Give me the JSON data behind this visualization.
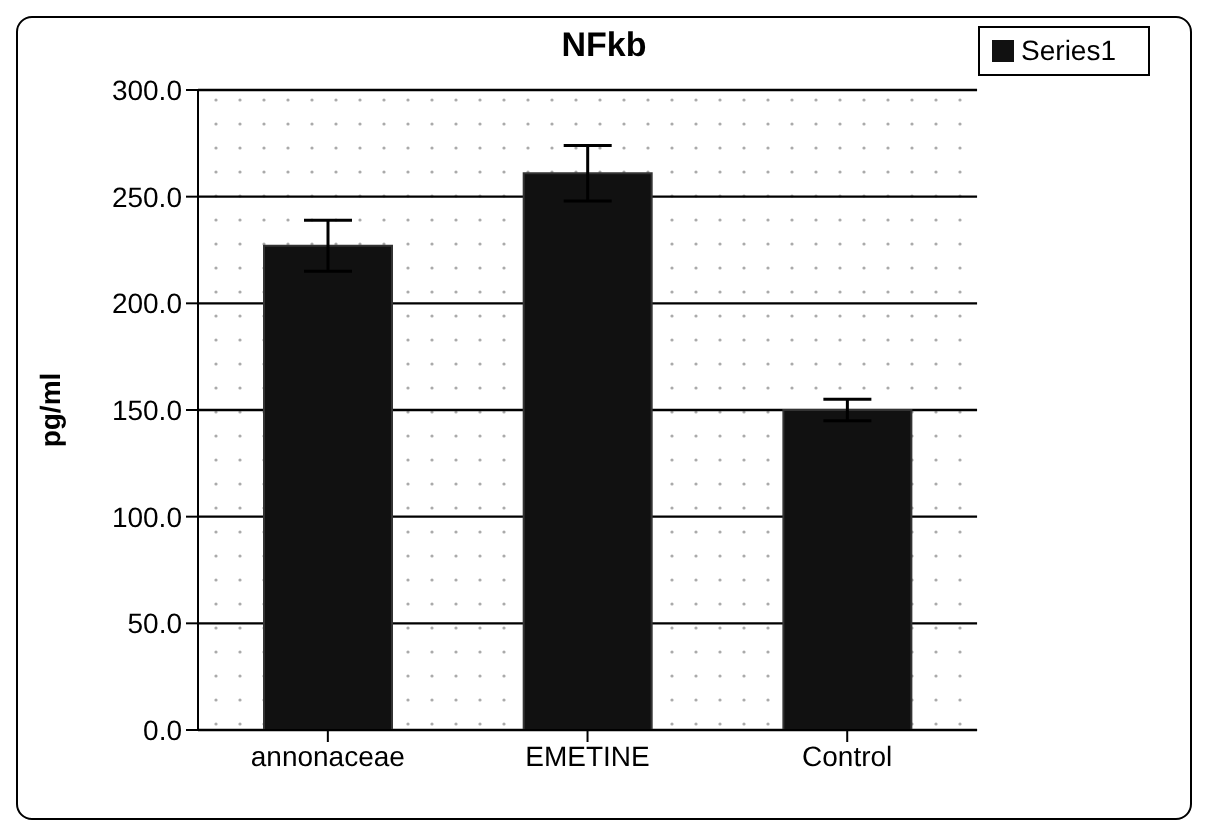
{
  "chart_data": {
    "type": "bar",
    "title": "NFkb",
    "ylabel": "pg/ml",
    "categories": [
      "annonaceae",
      "EMETINE",
      "Control"
    ],
    "series": [
      {
        "name": "Series1",
        "color": "#111111",
        "values": [
          227,
          261,
          150
        ],
        "errors": [
          12,
          13,
          5
        ]
      }
    ],
    "ylim": [
      0,
      300
    ],
    "yticks": [
      {
        "value": 0,
        "label": "0.0"
      },
      {
        "value": 50,
        "label": "50.0"
      },
      {
        "value": 100,
        "label": "100.0"
      },
      {
        "value": 150,
        "label": "150.0"
      },
      {
        "value": 200,
        "label": "200.0"
      },
      {
        "value": 250,
        "label": "250.0"
      },
      {
        "value": 300,
        "label": "300.0"
      }
    ],
    "grid": "y",
    "legend": "top right"
  }
}
